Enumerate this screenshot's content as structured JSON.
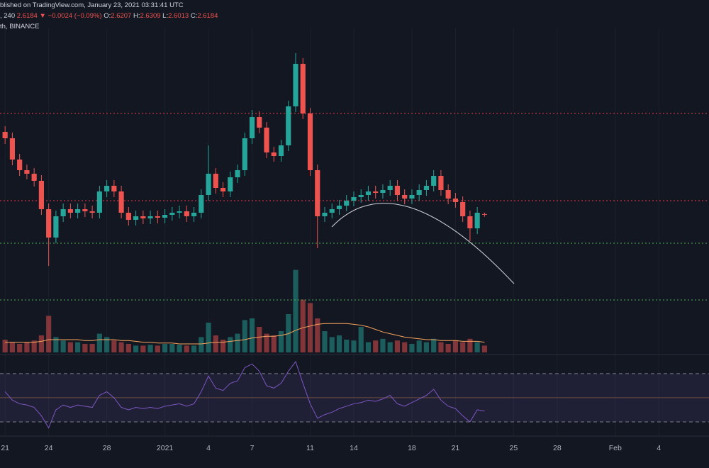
{
  "header": {
    "published": "blished on TradingView.com, January 23, 2021 03:31:41 UTC",
    "interval": ", 240",
    "last": "2.6184",
    "change": "▼ −0.0024 (−0.09%)",
    "ohlc": [
      {
        "label": "O:",
        "value": "2.6207"
      },
      {
        "label": "H:",
        "value": "2.6309"
      },
      {
        "label": "L:",
        "value": "2.6013"
      },
      {
        "label": "C:",
        "value": "2.6184"
      }
    ],
    "symbol": "th, BINANCE"
  },
  "chart_data": [
    {
      "type": "candlestick",
      "xlim": [
        -0.7,
        96.9
      ],
      "ylim": [
        1.63,
        4.03
      ],
      "grid": true,
      "xticks": [
        {
          "value": 0,
          "label": "21"
        },
        {
          "value": 6,
          "label": "24"
        },
        {
          "value": 14,
          "label": "28"
        },
        {
          "value": 22,
          "label": "2021"
        },
        {
          "value": 28,
          "label": "4"
        },
        {
          "value": 34,
          "label": "7"
        },
        {
          "value": 42,
          "label": "11"
        },
        {
          "value": 48,
          "label": "14"
        },
        {
          "value": 56,
          "label": "18"
        },
        {
          "value": 62,
          "label": "21"
        },
        {
          "value": 70,
          "label": "25"
        },
        {
          "value": 76,
          "label": "28"
        },
        {
          "value": 84,
          "label": "Feb"
        },
        {
          "value": 90,
          "label": "4"
        }
      ],
      "up_color": "#26a69a",
      "down_color": "#ef5350",
      "levels": [
        {
          "value": 3.33,
          "color": "#f23645"
        },
        {
          "value": 2.715,
          "color": "#f23645"
        },
        {
          "value": 2.415,
          "color": "#4caf50"
        },
        {
          "value": 2.015,
          "color": "#4caf50"
        }
      ],
      "series": [
        {
          "open": [
            3.2,
            3.155,
            3.005,
            2.93,
            2.905,
            2.855,
            2.655,
            2.455,
            2.605,
            2.655,
            2.63,
            2.655,
            2.64,
            2.63,
            2.78,
            2.82,
            2.78,
            2.63,
            2.58,
            2.605,
            2.59,
            2.605,
            2.595,
            2.615,
            2.63,
            2.64,
            2.605,
            2.63,
            2.755,
            2.905,
            2.805,
            2.78,
            2.88,
            2.93,
            3.155,
            3.305,
            3.23,
            3.055,
            3.03,
            3.105,
            3.38,
            3.68,
            3.33,
            2.93,
            2.605,
            2.63,
            2.655,
            2.68,
            2.715,
            2.74,
            2.755,
            2.78,
            2.77,
            2.79,
            2.82,
            2.755,
            2.73,
            2.755,
            2.79,
            2.82,
            2.89,
            2.79,
            2.73,
            2.705,
            2.605,
            2.52,
            2.6207
          ],
          "high": [
            3.24,
            3.195,
            3.045,
            2.97,
            2.945,
            2.895,
            2.695,
            2.645,
            2.695,
            2.695,
            2.695,
            2.695,
            2.68,
            2.82,
            2.86,
            2.86,
            2.82,
            2.67,
            2.645,
            2.645,
            2.645,
            2.645,
            2.655,
            2.67,
            2.68,
            2.68,
            2.67,
            2.795,
            3.105,
            2.945,
            2.845,
            2.92,
            2.97,
            3.195,
            3.355,
            3.345,
            3.27,
            3.095,
            3.145,
            3.42,
            3.755,
            3.72,
            3.37,
            2.97,
            2.67,
            2.695,
            2.72,
            2.755,
            2.78,
            2.795,
            2.82,
            2.82,
            2.83,
            2.86,
            2.86,
            2.795,
            2.795,
            2.83,
            2.86,
            2.93,
            2.93,
            2.83,
            2.77,
            2.745,
            2.645,
            2.67,
            2.6309
          ],
          "low": [
            3.115,
            2.965,
            2.89,
            2.865,
            2.815,
            2.615,
            2.255,
            2.415,
            2.565,
            2.59,
            2.59,
            2.6,
            2.59,
            2.59,
            2.74,
            2.74,
            2.59,
            2.54,
            2.54,
            2.55,
            2.55,
            2.555,
            2.555,
            2.575,
            2.59,
            2.565,
            2.565,
            2.59,
            2.715,
            2.765,
            2.74,
            2.74,
            2.84,
            2.89,
            3.115,
            3.19,
            3.015,
            2.99,
            2.99,
            3.065,
            3.34,
            3.29,
            2.89,
            2.38,
            2.565,
            2.59,
            2.615,
            2.64,
            2.675,
            2.7,
            2.715,
            2.73,
            2.73,
            2.75,
            2.715,
            2.69,
            2.69,
            2.715,
            2.75,
            2.78,
            2.75,
            2.69,
            2.665,
            2.565,
            2.43,
            2.48,
            2.6013
          ],
          "close": [
            3.155,
            3.005,
            2.93,
            2.905,
            2.855,
            2.655,
            2.455,
            2.605,
            2.655,
            2.63,
            2.655,
            2.64,
            2.63,
            2.78,
            2.82,
            2.78,
            2.63,
            2.58,
            2.605,
            2.59,
            2.605,
            2.595,
            2.615,
            2.63,
            2.64,
            2.605,
            2.63,
            2.755,
            2.905,
            2.805,
            2.78,
            2.88,
            2.93,
            3.155,
            3.305,
            3.23,
            3.055,
            3.03,
            3.105,
            3.38,
            3.68,
            3.33,
            2.93,
            2.605,
            2.63,
            2.655,
            2.68,
            2.715,
            2.74,
            2.755,
            2.78,
            2.77,
            2.79,
            2.82,
            2.755,
            2.73,
            2.755,
            2.79,
            2.82,
            2.89,
            2.79,
            2.73,
            2.705,
            2.605,
            2.52,
            2.63,
            2.6184
          ]
        }
      ]
    },
    {
      "type": "bar",
      "ylim": [
        0,
        100
      ],
      "up_color": "rgba(38,166,154,0.5)",
      "down_color": "rgba(239,83,80,0.5)",
      "values": [
        15,
        12,
        10,
        12,
        14,
        20,
        43,
        18,
        14,
        12,
        12,
        10,
        10,
        22,
        18,
        14,
        12,
        10,
        8,
        8,
        9,
        8,
        10,
        10,
        9,
        8,
        8,
        18,
        35,
        20,
        15,
        18,
        22,
        38,
        40,
        30,
        22,
        20,
        25,
        45,
        97,
        62,
        58,
        40,
        25,
        18,
        20,
        15,
        14,
        30,
        12,
        14,
        16,
        12,
        14,
        12,
        10,
        14,
        12,
        16,
        12,
        10,
        14,
        12,
        16,
        12,
        8
      ],
      "ma": {
        "color": "#f7a35c",
        "values": [
          12,
          12,
          12,
          12,
          12,
          13,
          15,
          15,
          15,
          15,
          15,
          14,
          14,
          15,
          15,
          15,
          14,
          14,
          13,
          12,
          12,
          11,
          11,
          11,
          10,
          10,
          10,
          10,
          11,
          12,
          12,
          13,
          14,
          15,
          17,
          18,
          19,
          19,
          20,
          22,
          26,
          29,
          31,
          33,
          34,
          34,
          34,
          34,
          33,
          32,
          30,
          27,
          24,
          22,
          20,
          18,
          17,
          16,
          15,
          15,
          14,
          14,
          14,
          13,
          13,
          13,
          12
        ]
      }
    },
    {
      "type": "line",
      "ylim": [
        18.2,
        82.9
      ],
      "color": "#7e57c2",
      "band_color": "rgba(126,87,194,0.12)",
      "levels": [
        70,
        50,
        30
      ],
      "values": [
        55,
        48,
        45,
        44,
        42,
        35,
        25,
        40,
        44,
        42,
        44,
        43,
        42,
        52,
        55,
        50,
        42,
        40,
        42,
        41,
        42,
        41,
        43,
        44,
        45,
        43,
        45,
        55,
        68,
        58,
        56,
        62,
        64,
        75,
        78,
        72,
        60,
        58,
        62,
        72,
        80,
        62,
        45,
        33,
        36,
        38,
        41,
        43,
        45,
        46,
        48,
        47,
        49,
        52,
        45,
        43,
        46,
        49,
        52,
        57,
        48,
        43,
        41,
        35,
        30,
        40,
        39
      ]
    }
  ]
}
